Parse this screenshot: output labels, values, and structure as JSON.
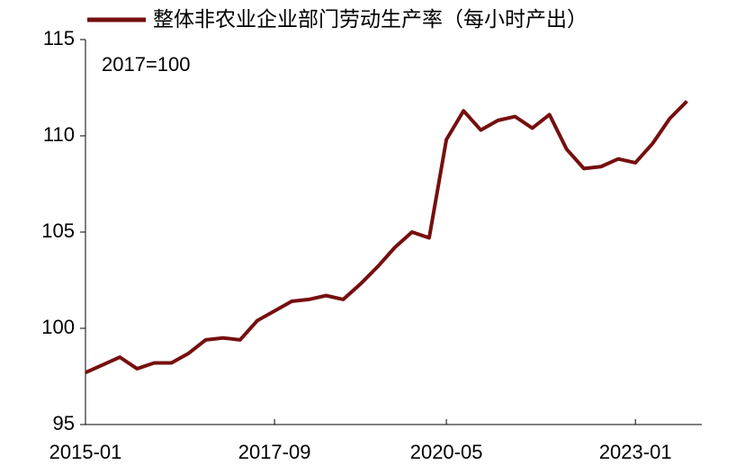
{
  "chart_data": {
    "type": "line",
    "annotation": "2017=100",
    "categories": [
      "2015-01",
      null,
      null,
      null,
      null,
      null,
      null,
      null,
      null,
      null,
      null,
      "2017-09",
      null,
      null,
      null,
      null,
      null,
      null,
      null,
      null,
      null,
      "2020-05",
      null,
      null,
      null,
      null,
      null,
      null,
      null,
      null,
      null,
      null,
      "2023-01",
      null,
      null,
      null
    ],
    "series": [
      {
        "name": "整体非农业企业部门劳动生产率（每小时产出）",
        "color": "#760f0f",
        "values": [
          97.7,
          98.1,
          98.5,
          97.9,
          98.2,
          98.2,
          98.7,
          99.4,
          99.5,
          99.4,
          100.4,
          100.9,
          101.4,
          101.5,
          101.7,
          101.5,
          102.3,
          103.2,
          104.2,
          105.0,
          104.7,
          109.8,
          111.3,
          110.3,
          110.8,
          111.0,
          110.4,
          111.1,
          109.3,
          108.3,
          108.4,
          108.8,
          108.6,
          109.6,
          110.9,
          111.8
        ]
      }
    ],
    "ylim": [
      95,
      115
    ],
    "yticks": [
      95,
      100,
      105,
      110,
      115
    ],
    "grid": false,
    "legend": "top"
  }
}
